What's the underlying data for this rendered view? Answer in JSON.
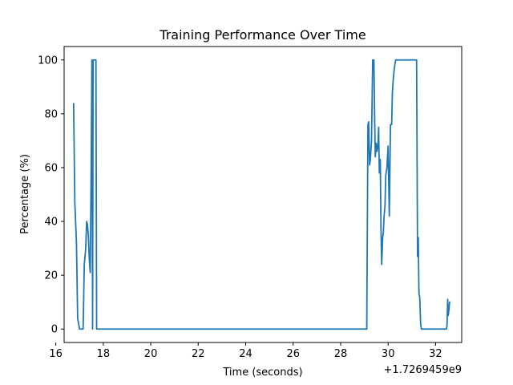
{
  "chart_data": {
    "type": "line",
    "title": "Training Performance Over Time",
    "xlabel": "Time (seconds)",
    "ylabel": "Percentage (%)",
    "x_offset_label": "+1.7269459e9",
    "xlim": [
      16.35,
      33.1
    ],
    "ylim": [
      -5,
      105
    ],
    "x_ticks": [
      16,
      18,
      20,
      22,
      24,
      26,
      28,
      30,
      32
    ],
    "y_ticks": [
      0,
      20,
      40,
      60,
      80,
      100
    ],
    "grid": false,
    "line_color": "#1f77b4",
    "series": [
      {
        "name": "",
        "x": [
          16.75,
          16.8,
          16.87,
          16.92,
          17.0,
          17.05,
          17.1,
          17.15,
          17.2,
          17.26,
          17.3,
          17.33,
          17.37,
          17.41,
          17.45,
          17.49,
          17.52,
          17.55,
          17.57,
          17.6,
          17.64,
          17.69,
          17.72,
          17.75,
          17.8,
          17.85,
          17.9,
          20.0,
          25.0,
          29.0,
          29.1,
          29.15,
          29.18,
          29.22,
          29.25,
          29.3,
          29.35,
          29.4,
          29.43,
          29.46,
          29.5,
          29.53,
          29.57,
          29.6,
          29.63,
          29.67,
          29.7,
          29.73,
          29.77,
          29.8,
          29.83,
          29.87,
          29.9,
          29.95,
          30.0,
          30.05,
          30.1,
          30.15,
          30.18,
          30.21,
          30.25,
          30.28,
          30.32,
          30.35,
          30.4,
          30.45,
          30.5,
          30.55,
          30.6,
          30.65,
          30.7,
          30.75,
          30.8,
          31.0,
          31.2,
          31.24,
          31.27,
          31.3,
          31.33,
          31.37,
          31.4,
          31.43,
          31.5,
          32.0,
          32.45,
          32.48,
          32.51,
          32.53,
          32.56,
          32.59,
          32.62
        ],
        "y": [
          84,
          47,
          32,
          4,
          0,
          0,
          0,
          0,
          24,
          30,
          40,
          39,
          35,
          26,
          21,
          60,
          100,
          0,
          100,
          100,
          100,
          100,
          0,
          0,
          0,
          0,
          0,
          0,
          0,
          0,
          0,
          76,
          77,
          61,
          63,
          70,
          100,
          100,
          80,
          64,
          69,
          66,
          68,
          75,
          58,
          63,
          37,
          24,
          34,
          36,
          42,
          46,
          57,
          60,
          68,
          42,
          76,
          76,
          88,
          92,
          96,
          98,
          100,
          100,
          100,
          100,
          100,
          100,
          100,
          100,
          100,
          100,
          100,
          100,
          100,
          27,
          34,
          13,
          12,
          2,
          0,
          0,
          0,
          0,
          0,
          1,
          11,
          5,
          7,
          10,
          10
        ]
      }
    ]
  }
}
